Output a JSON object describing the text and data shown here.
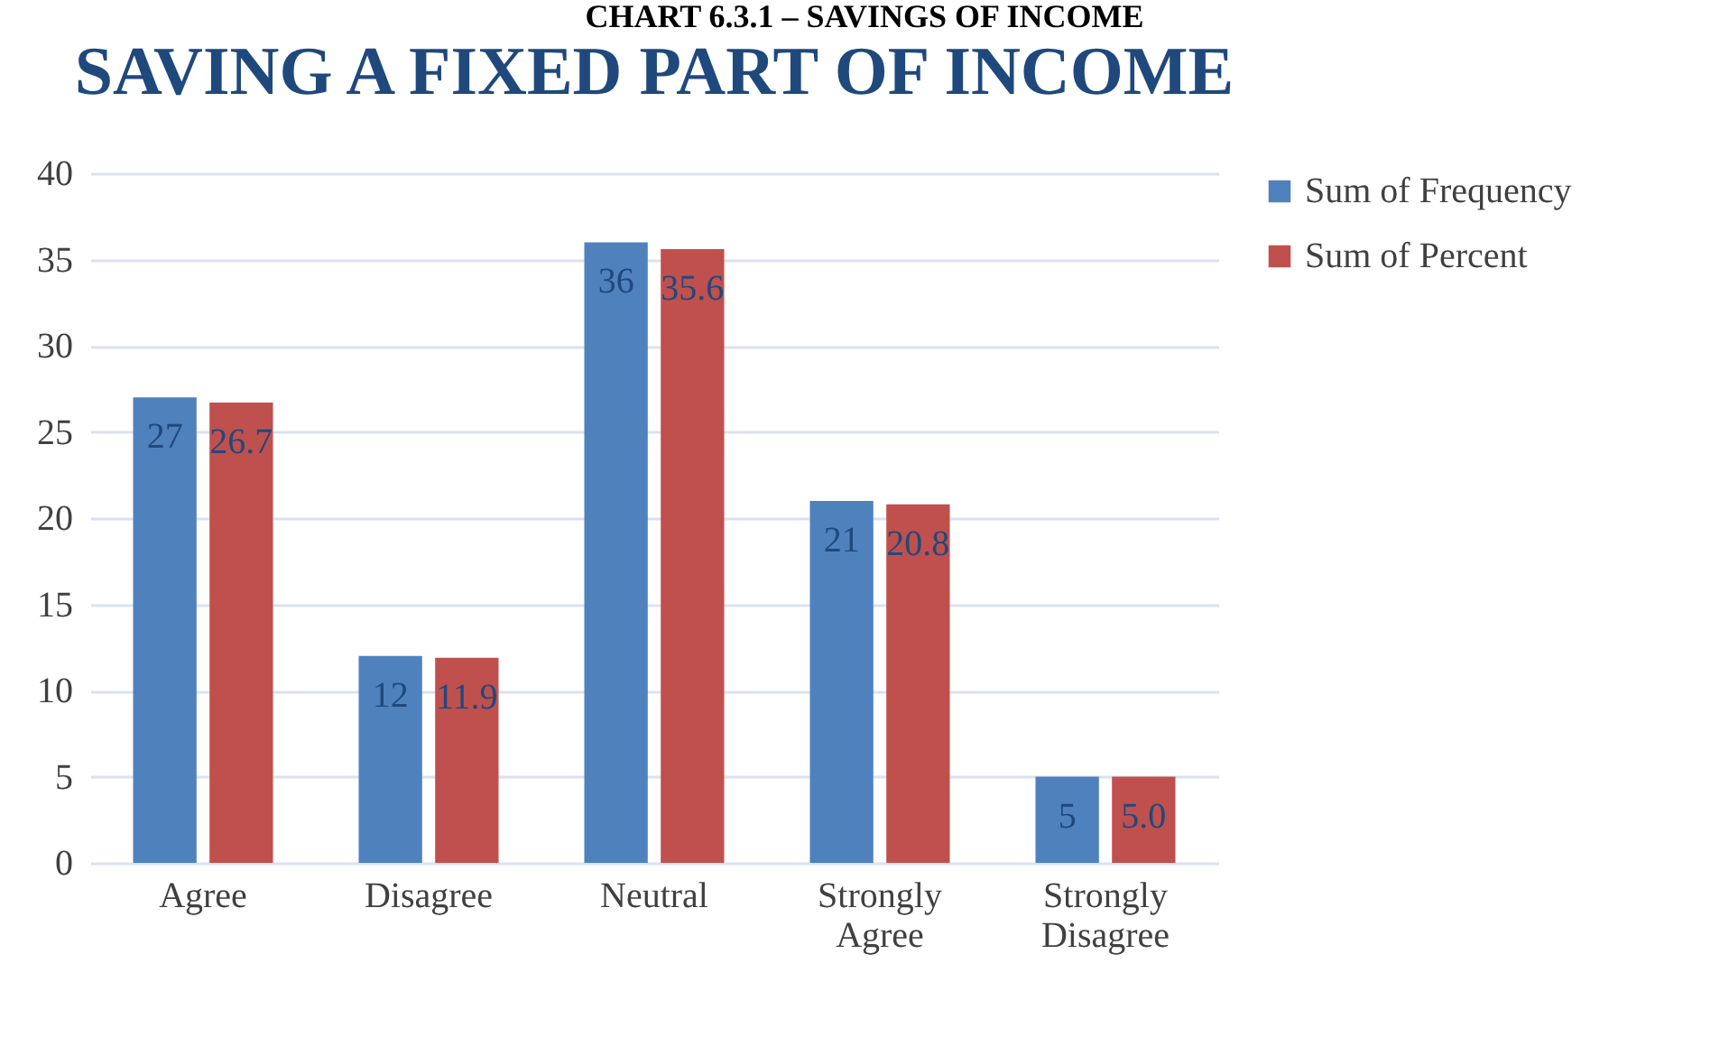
{
  "chart_data": {
    "type": "bar",
    "title": "SAVING A FIXED PART OF INCOME",
    "annotations": [
      "CHART 6.3.1 – SAVINGS OF INCOME"
    ],
    "categories": [
      "Agree",
      "Disagree",
      "Neutral",
      "Strongly Agree",
      "Strongly Disagree"
    ],
    "series": [
      {
        "name": "Sum of Frequency",
        "color": "#4f81bd",
        "values": [
          27,
          12,
          36,
          21,
          5
        ],
        "value_labels": [
          "27",
          "12",
          "36",
          "21",
          "5"
        ]
      },
      {
        "name": "Sum of Percent",
        "color": "#c0504d",
        "values": [
          26.7,
          11.9,
          35.6,
          20.8,
          5.0
        ],
        "value_labels": [
          "26.7",
          "11.9",
          "35.6",
          "20.8",
          "5.0"
        ]
      }
    ],
    "ylim": [
      0,
      40
    ],
    "yticks": [
      0,
      5,
      10,
      15,
      20,
      25,
      30,
      35,
      40
    ],
    "grid": "y",
    "legend": "right"
  }
}
